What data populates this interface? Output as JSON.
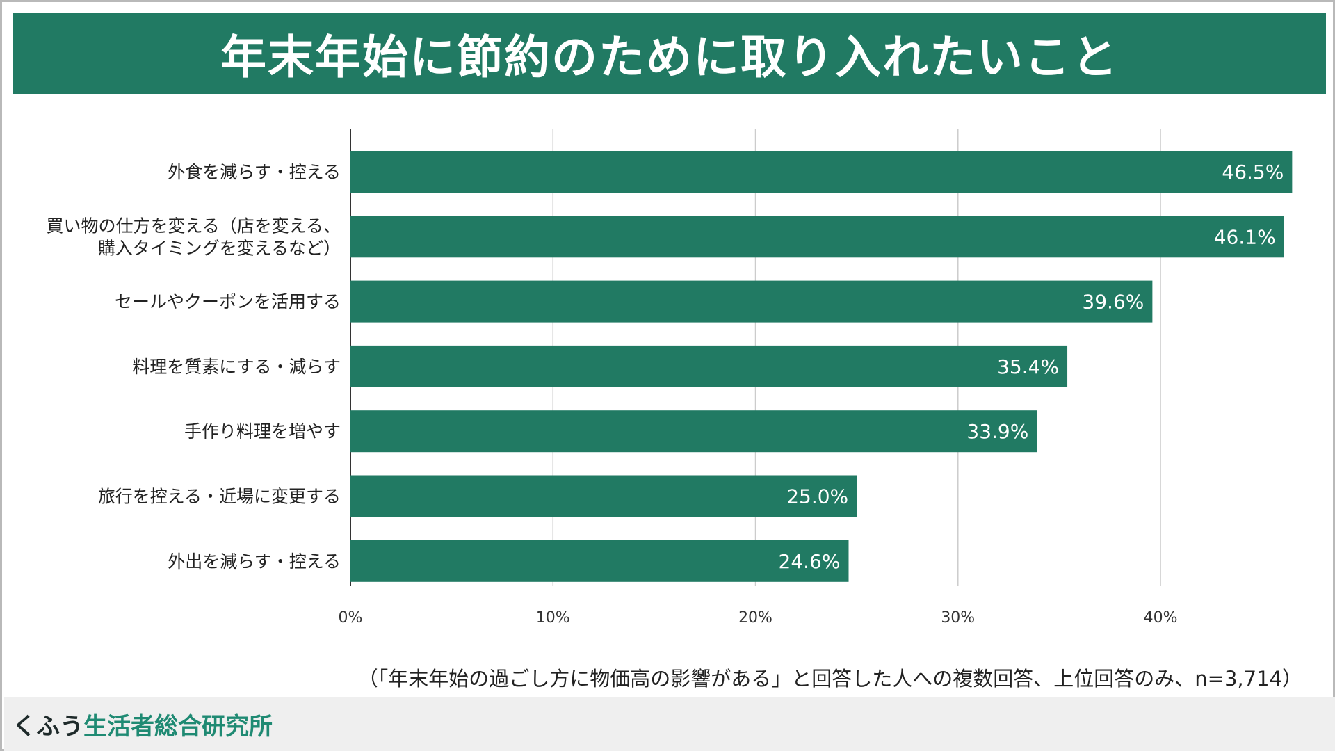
{
  "title": "年末年始に節約のために取り入れたいこと",
  "note": "（「年末年始の過ごし方に物価高の影響がある」と回答した人への複数回答、上位回答のみ、n=3,714）",
  "brand": {
    "part1": "くふう",
    "part2": "生活者総合研究所"
  },
  "colors": {
    "accent": "#217a63"
  },
  "chart_data": {
    "type": "bar",
    "orientation": "horizontal",
    "categories": [
      [
        "外食を減らす・控える"
      ],
      [
        "買い物の仕方を変える（店を変える、",
        "購入タイミングを変えるなど）"
      ],
      [
        "セールやクーポンを活用する"
      ],
      [
        "料理を質素にする・減らす"
      ],
      [
        "手作り料理を増やす"
      ],
      [
        "旅行を控える・近場に変更する"
      ],
      [
        "外出を減らす・控える"
      ]
    ],
    "values": [
      46.5,
      46.1,
      39.6,
      35.4,
      33.9,
      25.0,
      24.6
    ],
    "value_labels": [
      "46.5%",
      "46.1%",
      "39.6%",
      "35.4%",
      "33.9%",
      "25.0%",
      "24.6%"
    ],
    "xticks": [
      "0%",
      "10%",
      "20%",
      "30%",
      "40%"
    ],
    "xtick_values": [
      0,
      10,
      20,
      30,
      40
    ],
    "xlim": [
      0,
      46.9
    ],
    "grid": true
  }
}
